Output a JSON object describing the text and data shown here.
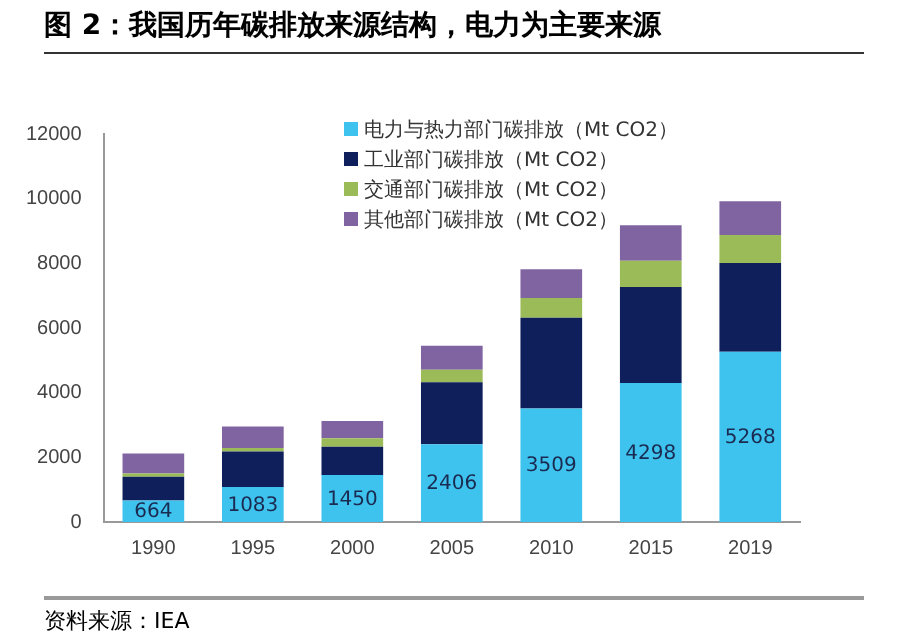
{
  "chart_data": {
    "type": "bar",
    "title": "图 2：我国历年碳排放来源结构，电力为主要来源",
    "annotations": [
      "资料来源：IEA"
    ],
    "categories": [
      "1990",
      "1995",
      "2000",
      "2005",
      "2010",
      "2015",
      "2019"
    ],
    "stacked": true,
    "series": [
      {
        "name": "电力与热力部门碳排放（Mt CO2）",
        "color": "#3ec3ef",
        "values": [
          664,
          1083,
          1450,
          2406,
          3509,
          4298,
          5268
        ],
        "value_labels": [
          "664",
          "1083",
          "1450",
          "2406",
          "3509",
          "4298",
          "5268"
        ]
      },
      {
        "name": "工业部门碳排放（Mt CO2）",
        "color": "#0f1f5c",
        "values": [
          736,
          1097,
          880,
          1914,
          2811,
          2972,
          2742
        ]
      },
      {
        "name": "交通部门碳排放（Mt CO2）",
        "color": "#9bbb59",
        "values": [
          100,
          110,
          260,
          390,
          610,
          810,
          870
        ]
      },
      {
        "name": "其他部门碳排放（Mt CO2）",
        "color": "#8064a2",
        "values": [
          620,
          660,
          530,
          740,
          890,
          1100,
          1040
        ]
      }
    ],
    "ylim": [
      0,
      12000
    ],
    "yticks": [
      0,
      2000,
      4000,
      6000,
      8000,
      10000,
      12000
    ],
    "grid": false,
    "legend": "top"
  }
}
